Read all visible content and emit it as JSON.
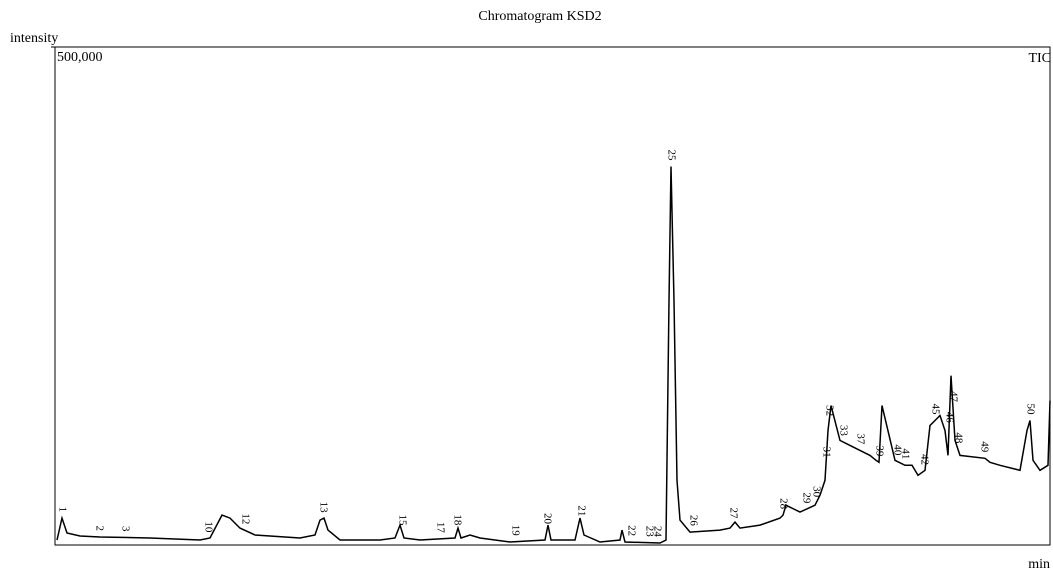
{
  "chart_data": {
    "type": "line",
    "title": "Chromatogram KSD2",
    "ylabel": "intensity",
    "xlabel": "min",
    "ylim": [
      0,
      500000
    ],
    "yticks": [
      {
        "value": 500000,
        "label": "500,000"
      }
    ],
    "xlim": [
      0,
      995
    ],
    "series": [
      {
        "name": "TIC",
        "color": "#000000",
        "x": [
          2,
          7,
          12,
          25,
          45,
          95,
          145,
          155,
          167,
          175,
          185,
          200,
          245,
          260,
          265,
          269,
          273,
          285,
          325,
          340,
          345,
          349,
          365,
          400,
          403,
          406,
          415,
          425,
          455,
          490,
          493,
          496,
          520,
          525,
          529,
          545,
          565,
          567,
          570,
          605,
          611,
          614,
          616,
          619,
          622,
          625,
          635,
          665,
          675,
          680,
          685,
          705,
          725,
          728,
          731,
          745,
          760,
          765,
          770,
          773,
          776,
          785,
          795,
          805,
          815,
          821,
          824,
          827,
          840,
          850,
          857,
          863,
          870,
          875,
          880,
          885,
          890,
          893,
          896,
          900,
          905,
          930,
          935,
          945,
          965,
          972,
          975,
          978,
          985,
          993,
          995
        ],
        "values": [
          5000,
          27000,
          12000,
          9000,
          8000,
          7000,
          5000,
          7000,
          30000,
          27000,
          17000,
          10000,
          7000,
          10000,
          25000,
          27000,
          15000,
          5000,
          5000,
          7000,
          20000,
          7000,
          5000,
          7000,
          17000,
          7000,
          10000,
          7000,
          3000,
          5000,
          20000,
          5000,
          5000,
          27000,
          10000,
          3000,
          5000,
          15000,
          3000,
          2000,
          5000,
          245000,
          380000,
          245000,
          65000,
          25000,
          13000,
          15000,
          17000,
          23000,
          17000,
          20000,
          27000,
          30000,
          40000,
          33000,
          40000,
          50000,
          65000,
          115000,
          140000,
          105000,
          100000,
          95000,
          90000,
          85000,
          83000,
          140000,
          85000,
          80000,
          80000,
          70000,
          75000,
          120000,
          125000,
          130000,
          115000,
          90000,
          170000,
          105000,
          90000,
          87000,
          83000,
          80000,
          75000,
          115000,
          125000,
          85000,
          75000,
          80000,
          145000
        ]
      }
    ],
    "peaks": [
      {
        "label": "1",
        "x": 7
      },
      {
        "label": "2",
        "x": 44
      },
      {
        "label": "3",
        "x": 70
      },
      {
        "label": "10",
        "x": 153
      },
      {
        "label": "12",
        "x": 190
      },
      {
        "label": "13",
        "x": 268
      },
      {
        "label": "15",
        "x": 347
      },
      {
        "label": "17",
        "x": 385
      },
      {
        "label": "18",
        "x": 402
      },
      {
        "label": "19",
        "x": 460
      },
      {
        "label": "20",
        "x": 492
      },
      {
        "label": "21",
        "x": 526
      },
      {
        "label": "22",
        "x": 576
      },
      {
        "label": "23",
        "x": 594
      },
      {
        "label": "24",
        "x": 602
      },
      {
        "label": "25",
        "x": 616
      },
      {
        "label": "26",
        "x": 638
      },
      {
        "label": "27",
        "x": 678
      },
      {
        "label": "28",
        "x": 728
      },
      {
        "label": "29",
        "x": 751
      },
      {
        "label": "30",
        "x": 761
      },
      {
        "label": "31",
        "x": 771
      },
      {
        "label": "32",
        "x": 774
      },
      {
        "label": "33",
        "x": 788
      },
      {
        "label": "37",
        "x": 805
      },
      {
        "label": "39",
        "x": 824
      },
      {
        "label": "40",
        "x": 842
      },
      {
        "label": "41",
        "x": 850
      },
      {
        "label": "42",
        "x": 869
      },
      {
        "label": "45",
        "x": 880
      },
      {
        "label": "46",
        "x": 894
      },
      {
        "label": "47",
        "x": 898
      },
      {
        "label": "48",
        "x": 903
      },
      {
        "label": "49",
        "x": 929
      },
      {
        "label": "50",
        "x": 975
      }
    ]
  }
}
